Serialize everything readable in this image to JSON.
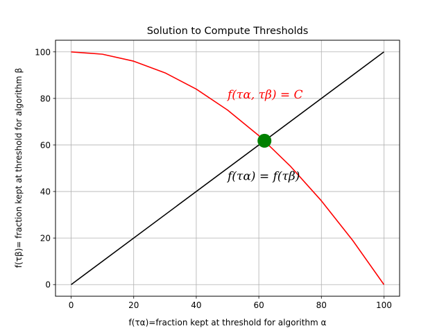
{
  "chart_data": {
    "type": "line",
    "title": "Solution to Compute Thresholds",
    "xlabel": "f(τα)=fraction kept at threshold for algorithm α",
    "ylabel": "f(τβ)= fraction kept at threshold for algorithm β",
    "xlim": [
      -5,
      105
    ],
    "ylim": [
      -5,
      105
    ],
    "xticks": [
      0,
      20,
      40,
      60,
      80,
      100
    ],
    "yticks": [
      0,
      20,
      40,
      60,
      80,
      100
    ],
    "xtick_labels": [
      "0",
      "20",
      "40",
      "60",
      "80",
      "100"
    ],
    "ytick_labels": [
      "0",
      "20",
      "40",
      "60",
      "80",
      "100"
    ],
    "grid": true,
    "series": [
      {
        "color": "#ff0000",
        "x": [
          0,
          10,
          20,
          30,
          40,
          50,
          60,
          70,
          80,
          90,
          100
        ],
        "y": [
          100,
          99,
          96,
          91,
          84,
          75,
          64,
          51,
          36,
          19,
          0
        ]
      },
      {
        "color": "#000000",
        "x": [
          0,
          100
        ],
        "y": [
          0,
          100
        ]
      }
    ],
    "intersection": {
      "x": 61.8,
      "y": 61.8,
      "color": "#008000"
    },
    "annotations": [
      {
        "text": "f(τα, τβ) = C",
        "x": 50,
        "y": 80,
        "color": "#ff0000"
      },
      {
        "text": "f(τα) = f(τβ)",
        "x": 50,
        "y": 45,
        "color": "#000000"
      }
    ]
  }
}
